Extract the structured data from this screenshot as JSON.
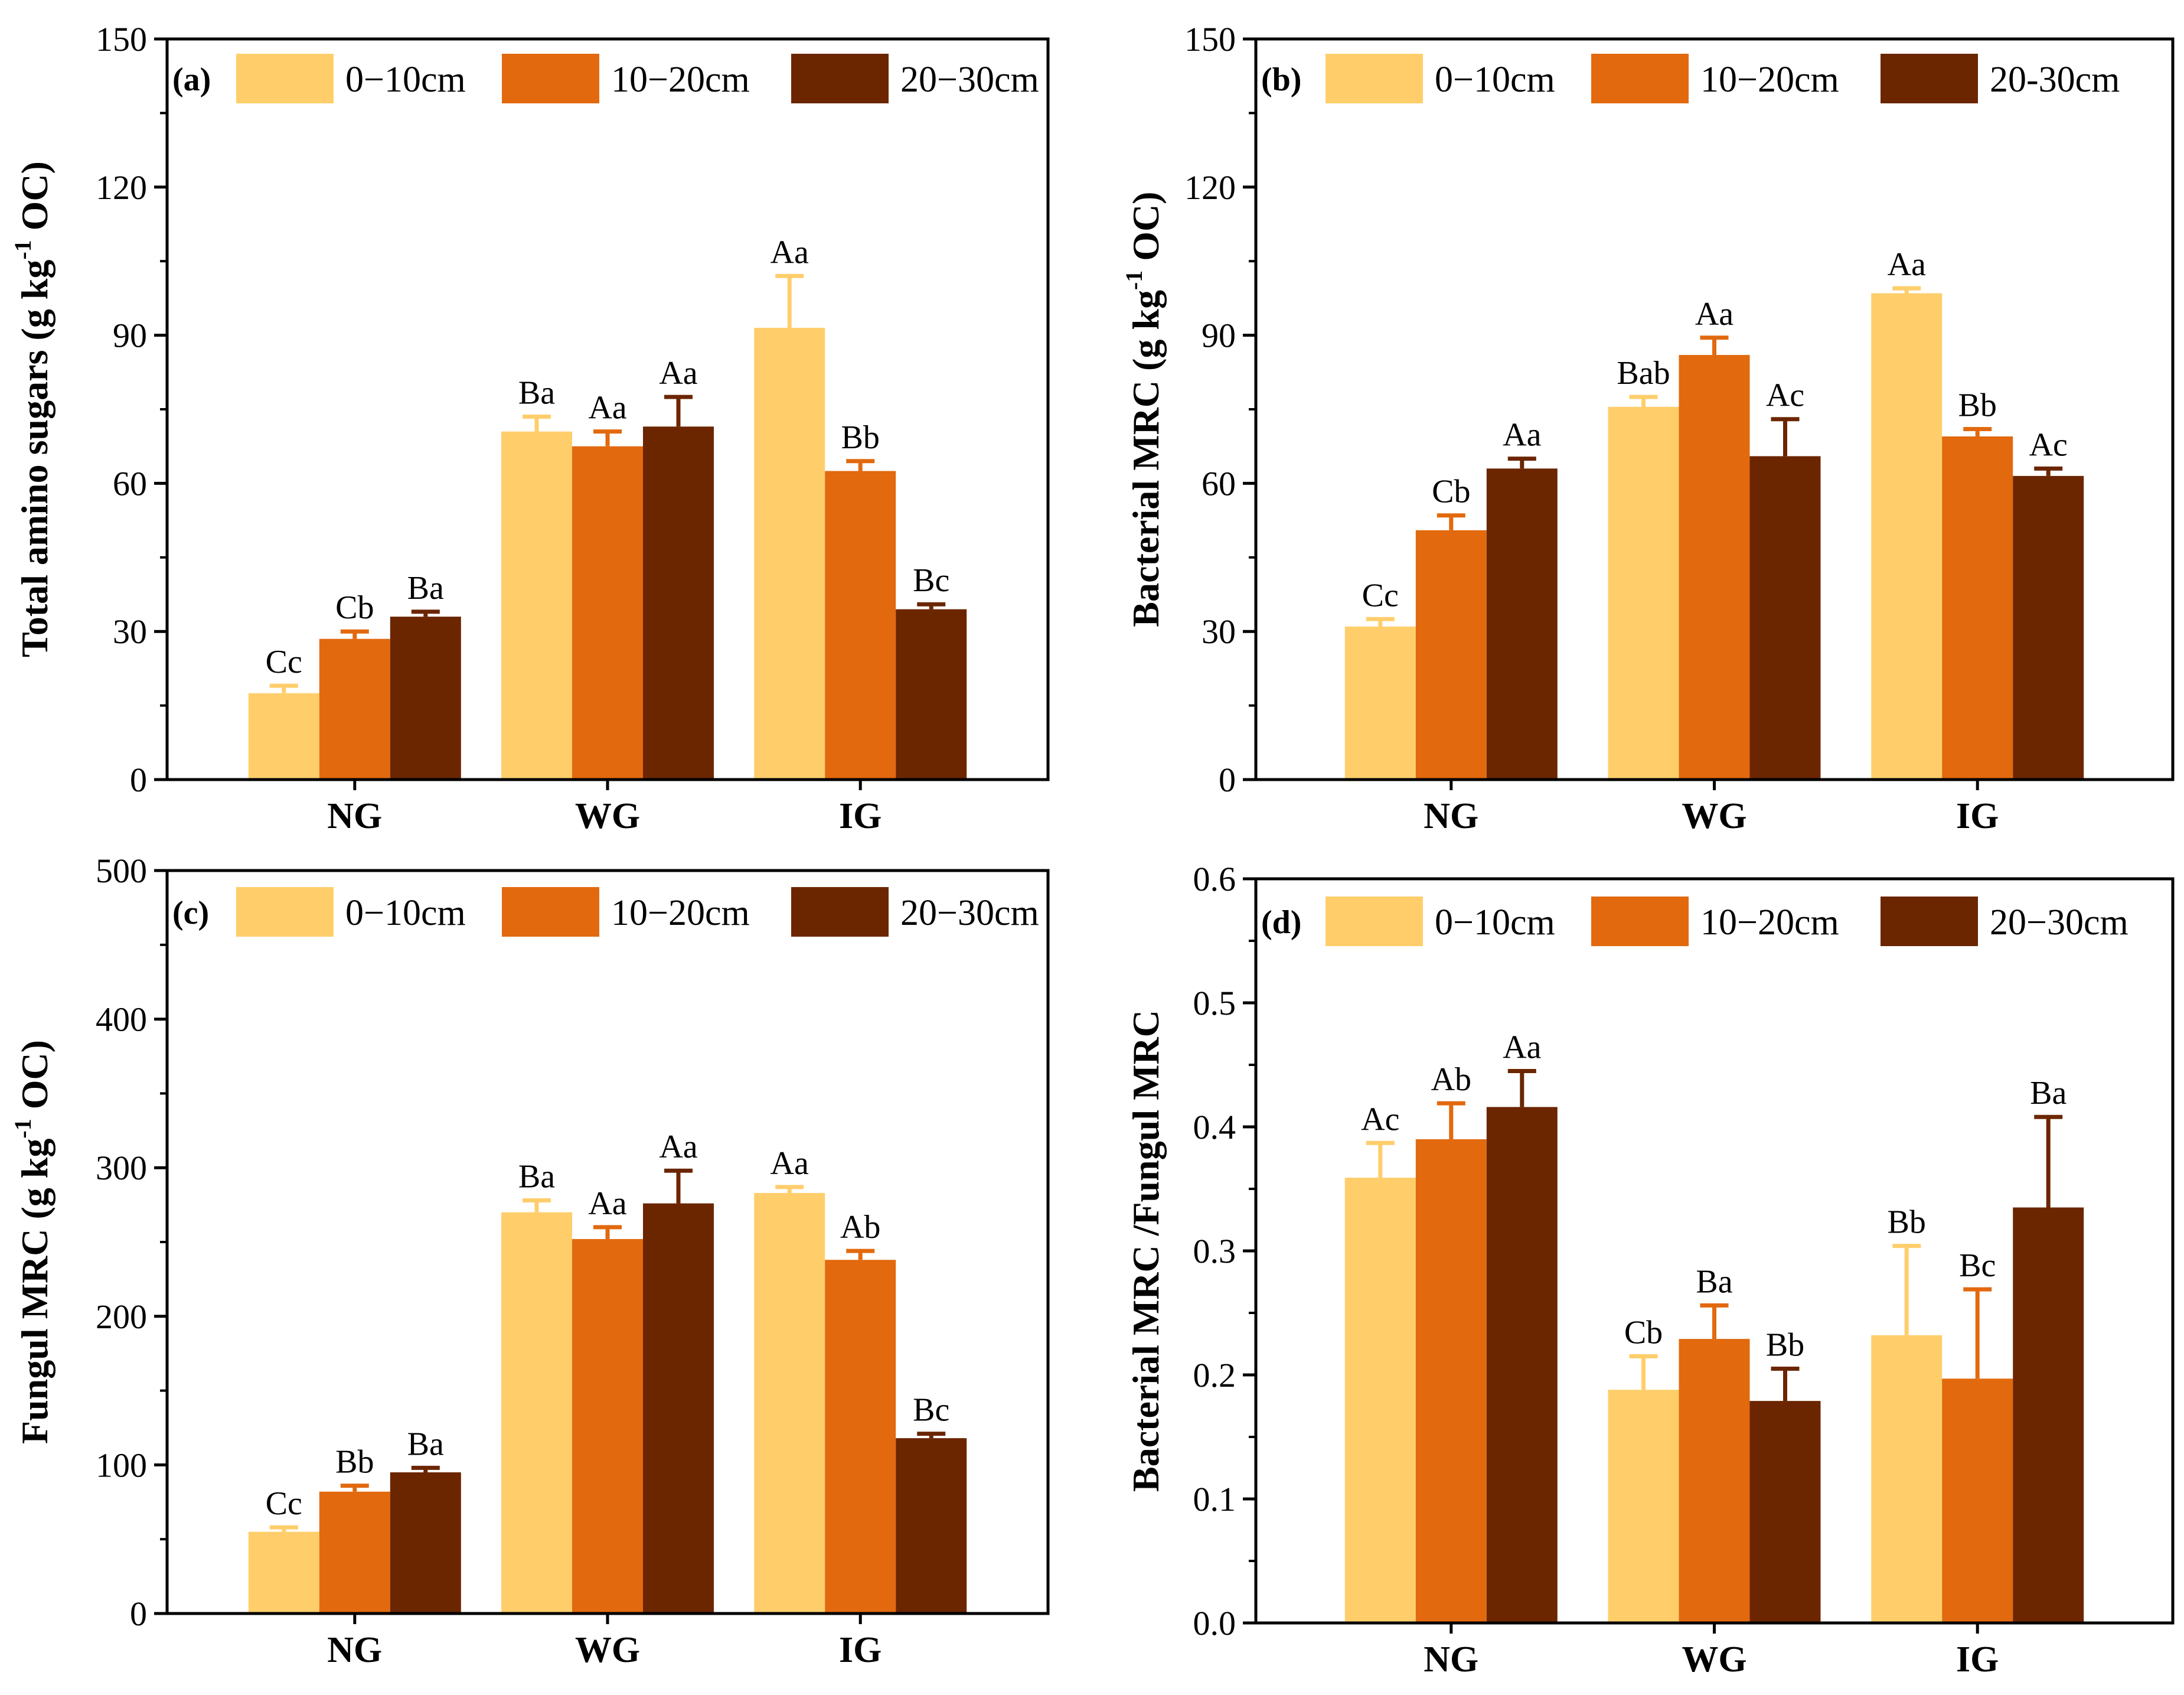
{
  "colors": {
    "series": [
      "#FFCE6B",
      "#E2690E",
      "#6B2600"
    ],
    "axis": "#000000"
  },
  "chart_data": [
    {
      "type": "bar",
      "panel_label": "(a)",
      "ylabel": "Total  amino sugars (g kg",
      "ylabel_sup": "-1",
      "ylabel_tail": " OC)",
      "ylim": [
        0,
        150
      ],
      "yticks": [
        "0",
        "30",
        "60",
        "90",
        "120",
        "150"
      ],
      "ytick_values": [
        0,
        30,
        60,
        90,
        120,
        150
      ],
      "categories": [
        "NG",
        "WG",
        "IG"
      ],
      "series": [
        {
          "name": "0−10cm",
          "values": [
            17.5,
            70.5,
            91.5
          ],
          "errors": [
            1.5,
            3.0,
            10.5
          ],
          "labels": [
            "Cc",
            "Ba",
            "Aa"
          ]
        },
        {
          "name": "10−20cm",
          "values": [
            28.5,
            67.5,
            62.5
          ],
          "errors": [
            1.5,
            3.0,
            2.0
          ],
          "labels": [
            "Cb",
            "Aa",
            "Bb"
          ]
        },
        {
          "name": "20−30cm",
          "values": [
            33.0,
            71.5,
            34.5
          ],
          "errors": [
            1.0,
            6.0,
            1.0
          ],
          "labels": [
            "Ba",
            "Aa",
            "Bc"
          ]
        }
      ]
    },
    {
      "type": "bar",
      "panel_label": "(b)",
      "ylabel": "Bacterial MRC (g kg",
      "ylabel_sup": "-1",
      "ylabel_tail": " OC)",
      "ylim": [
        0,
        150
      ],
      "yticks": [
        "0",
        "30",
        "60",
        "90",
        "120",
        "150"
      ],
      "ytick_values": [
        0,
        30,
        60,
        90,
        120,
        150
      ],
      "categories": [
        "NG",
        "WG",
        "IG"
      ],
      "series": [
        {
          "name": "0−10cm",
          "values": [
            31.0,
            75.5,
            98.5
          ],
          "errors": [
            1.5,
            2.0,
            1.0
          ],
          "labels": [
            "Cc",
            "Bab",
            "Aa"
          ]
        },
        {
          "name": "10−20cm",
          "values": [
            50.5,
            86.0,
            69.5
          ],
          "errors": [
            3.0,
            3.5,
            1.5
          ],
          "labels": [
            "Cb",
            "Aa",
            "Bb"
          ]
        },
        {
          "name": "20-30cm",
          "values": [
            63.0,
            65.5,
            61.5
          ],
          "errors": [
            2.0,
            7.5,
            1.5
          ],
          "labels": [
            "Aa",
            "Ac",
            "Ac"
          ]
        }
      ]
    },
    {
      "type": "bar",
      "panel_label": "(c)",
      "ylabel": "Fungul MRC (g kg",
      "ylabel_sup": "-1",
      "ylabel_tail": " OC)",
      "ylim": [
        0,
        500
      ],
      "yticks": [
        "0",
        "100",
        "200",
        "300",
        "400",
        "500"
      ],
      "ytick_values": [
        0,
        100,
        200,
        300,
        400,
        500
      ],
      "categories": [
        "NG",
        "WG",
        "IG"
      ],
      "series": [
        {
          "name": "0−10cm",
          "values": [
            55,
            270,
            283
          ],
          "errors": [
            3,
            8,
            4
          ],
          "labels": [
            "Cc",
            "Ba",
            "Aa"
          ]
        },
        {
          "name": "10−20cm",
          "values": [
            82,
            252,
            238
          ],
          "errors": [
            4,
            8,
            6
          ],
          "labels": [
            "Bb",
            "Aa",
            "Ab"
          ]
        },
        {
          "name": "20−30cm",
          "values": [
            95,
            276,
            118
          ],
          "errors": [
            3,
            22,
            3
          ],
          "labels": [
            "Ba",
            "Aa",
            "Bc"
          ]
        }
      ]
    },
    {
      "type": "bar",
      "panel_label": "(d)",
      "ylabel": "Bacterial MRC /Fungul MRC",
      "ylabel_sup": "",
      "ylabel_tail": "",
      "ylim": [
        0,
        0.6
      ],
      "yticks": [
        "0.0",
        "0.1",
        "0.2",
        "0.3",
        "0.4",
        "0.5",
        "0.6"
      ],
      "ytick_values": [
        0,
        0.1,
        0.2,
        0.3,
        0.4,
        0.5,
        0.6
      ],
      "categories": [
        "NG",
        "WG",
        "IG"
      ],
      "series": [
        {
          "name": "0−10cm",
          "values": [
            0.359,
            0.188,
            0.232
          ],
          "errors": [
            0.028,
            0.027,
            0.072
          ],
          "labels": [
            "Ac",
            "Cb",
            "Bb"
          ]
        },
        {
          "name": "10−20cm",
          "values": [
            0.39,
            0.229,
            0.197
          ],
          "errors": [
            0.029,
            0.027,
            0.072
          ],
          "labels": [
            "Ab",
            "Ba",
            "Bc"
          ]
        },
        {
          "name": "20−30cm",
          "values": [
            0.416,
            0.179,
            0.335
          ],
          "errors": [
            0.029,
            0.026,
            0.073
          ],
          "labels": [
            "Aa",
            "Bb",
            "Ba"
          ]
        }
      ]
    }
  ]
}
